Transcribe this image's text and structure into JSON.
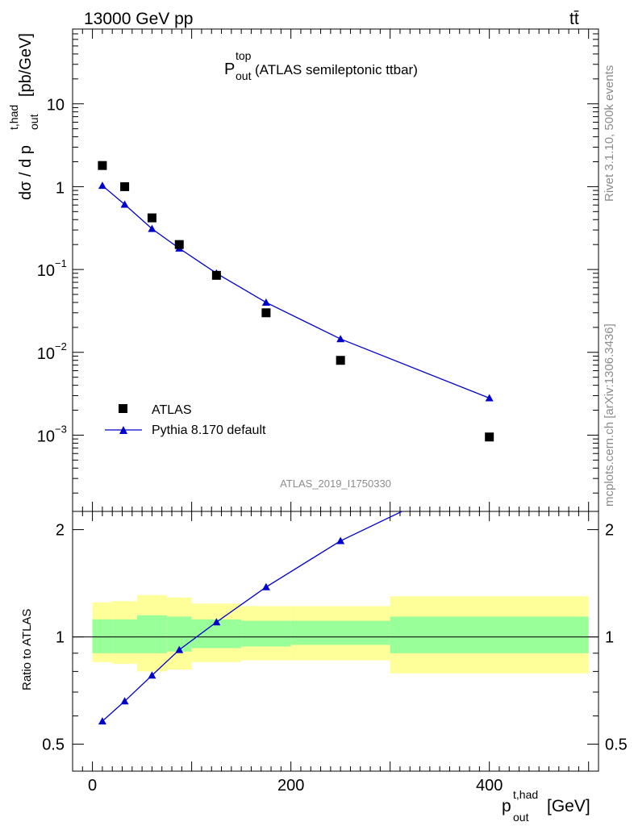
{
  "header": {
    "energy_label": "13000 GeV pp",
    "process_label": "tt̄"
  },
  "plot_title": {
    "main": "P",
    "sup": "top",
    "sub": "out",
    "rest": " (ATLAS semileptonic ttbar)"
  },
  "side_text": {
    "rivet": "Rivet 3.1.10,  500k events",
    "mcplots": "mcplots.cern.ch [arXiv:1306.3436]"
  },
  "analysis_id": "ATLAS_2019_I1750330",
  "axes": {
    "ylabel_main": {
      "prefix": "dσ / d p",
      "sup": "t,had",
      "sub": "out",
      "suffix": " [pb/GeV]"
    },
    "ylabel_ratio": "Ratio to ATLAS",
    "xlabel": {
      "main": "p",
      "sup": "t,had",
      "sub": "out",
      "suffix": " [GeV]"
    }
  },
  "legend": {
    "atlas": "ATLAS",
    "pythia": "Pythia 8.170 default"
  },
  "colors": {
    "mc_line": "#0000cc",
    "band_inner": "#99ff99",
    "band_outer": "#ffff99",
    "data_marker": "#000000"
  },
  "chart_data": {
    "type": "scatter",
    "x_range": [
      -20,
      510
    ],
    "log_y": true,
    "main_ylim": [
      0.00012,
      80
    ],
    "ratio_ylim": [
      0.42,
      2.25
    ],
    "x_tick_labels": [
      "0",
      "200",
      "400"
    ],
    "main_tick_labels": [
      {
        "v": 10,
        "base": "10",
        "exp": ""
      },
      {
        "v": 1,
        "base": "1",
        "exp": ""
      },
      {
        "v": 0.1,
        "base": "10",
        "exp": "−1"
      },
      {
        "v": 0.01,
        "base": "10",
        "exp": "−2"
      },
      {
        "v": 0.001,
        "base": "10",
        "exp": "−3"
      }
    ],
    "ratio_tick_labels": [
      "0.5",
      "1",
      "2"
    ],
    "series": [
      {
        "name": "ATLAS",
        "x": [
          10,
          32.5,
          60,
          87.5,
          125,
          175,
          250,
          400
        ],
        "y": [
          1.8,
          1.0,
          0.42,
          0.2,
          0.085,
          0.03,
          0.008,
          0.00095
        ]
      },
      {
        "name": "Pythia 8.170 default",
        "x": [
          10,
          32.5,
          60,
          87.5,
          125,
          175,
          250,
          400
        ],
        "y": [
          1.03,
          0.61,
          0.31,
          0.18,
          0.09,
          0.04,
          0.0145,
          0.0028
        ]
      }
    ],
    "ratio": {
      "x": [
        10,
        32.5,
        60,
        87.5,
        125,
        175,
        250,
        400
      ],
      "y": [
        0.58,
        0.66,
        0.78,
        0.92,
        1.1,
        1.38,
        1.86,
        2.95
      ]
    },
    "bins": [
      {
        "lo": 0,
        "hi": 20,
        "inner": [
          0.9,
          1.12
        ],
        "outer": [
          0.85,
          1.25
        ]
      },
      {
        "lo": 20,
        "hi": 45,
        "inner": [
          0.9,
          1.12
        ],
        "outer": [
          0.84,
          1.26
        ]
      },
      {
        "lo": 45,
        "hi": 75,
        "inner": [
          0.9,
          1.15
        ],
        "outer": [
          0.8,
          1.31
        ]
      },
      {
        "lo": 75,
        "hi": 100,
        "inner": [
          0.91,
          1.14
        ],
        "outer": [
          0.81,
          1.29
        ]
      },
      {
        "lo": 100,
        "hi": 150,
        "inner": [
          0.93,
          1.12
        ],
        "outer": [
          0.85,
          1.24
        ]
      },
      {
        "lo": 150,
        "hi": 200,
        "inner": [
          0.94,
          1.11
        ],
        "outer": [
          0.86,
          1.22
        ]
      },
      {
        "lo": 200,
        "hi": 300,
        "inner": [
          0.95,
          1.11
        ],
        "outer": [
          0.86,
          1.22
        ]
      },
      {
        "lo": 300,
        "hi": 500,
        "inner": [
          0.9,
          1.14
        ],
        "outer": [
          0.79,
          1.3
        ]
      }
    ]
  }
}
